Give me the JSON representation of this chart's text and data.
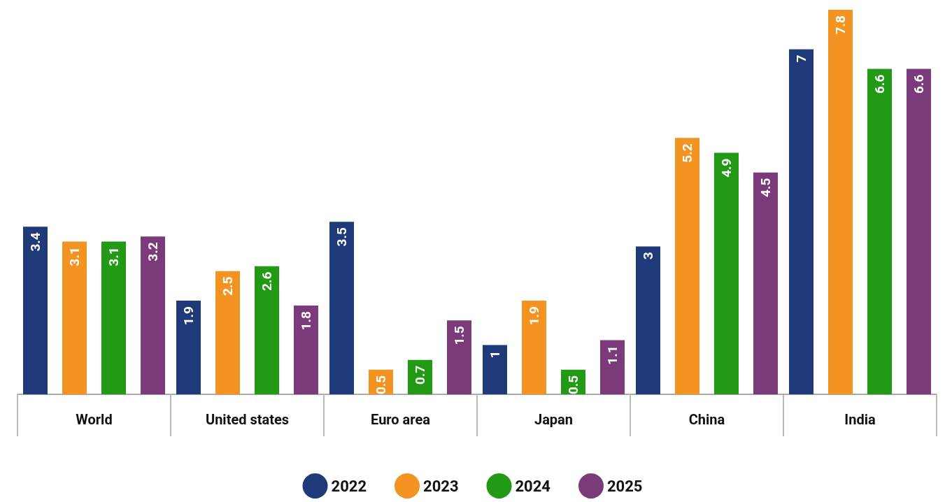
{
  "chart_data": {
    "type": "bar",
    "categories": [
      "World",
      "United states",
      "Euro area",
      "Japan",
      "China",
      "India"
    ],
    "series": [
      {
        "name": "2022",
        "color": "#1f3a78",
        "values": [
          3.4,
          1.9,
          3.5,
          1,
          3,
          7
        ]
      },
      {
        "name": "2023",
        "color": "#f39322",
        "values": [
          3.1,
          2.5,
          0.5,
          1.9,
          5.2,
          7.8
        ]
      },
      {
        "name": "2024",
        "color": "#229a16",
        "values": [
          3.1,
          2.6,
          0.7,
          0.5,
          4.9,
          6.6
        ]
      },
      {
        "name": "2025",
        "color": "#7b3b7a",
        "values": [
          3.2,
          1.8,
          1.5,
          1.1,
          4.5,
          6.6
        ]
      }
    ],
    "data_labels": true,
    "legend": "bottom",
    "grid": false
  }
}
